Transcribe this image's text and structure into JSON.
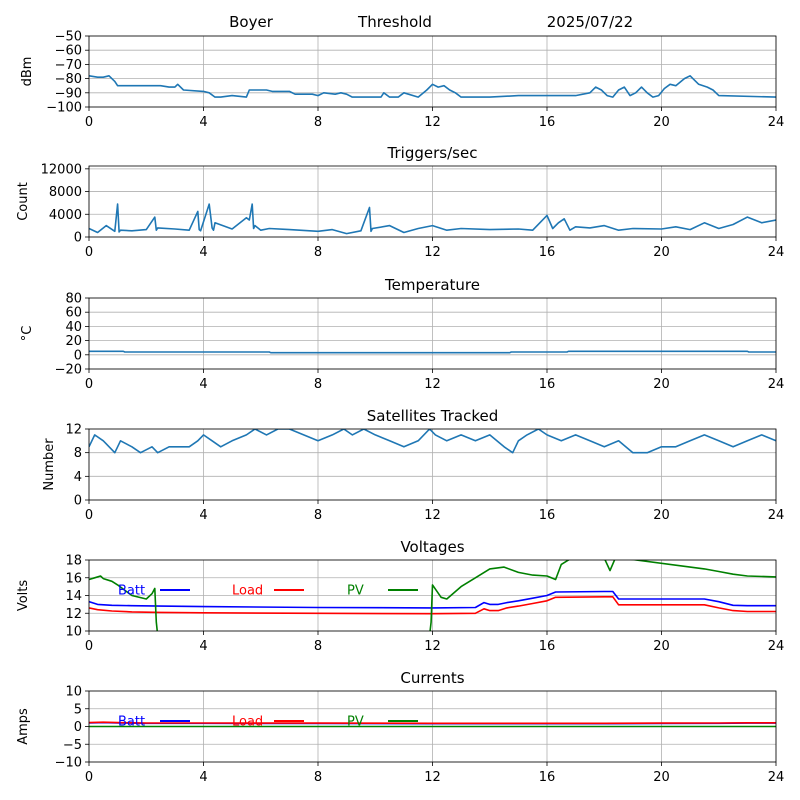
{
  "header": {
    "station": "Boyer",
    "mode": "Threshold",
    "date": "2025/07/22"
  },
  "colors": {
    "main": "#1f77b4",
    "batt": "#0000ff",
    "load": "#ff0000",
    "pv": "#008000",
    "grid": "#b0b0b0"
  },
  "chart_data": [
    {
      "type": "line",
      "title": "",
      "xlabel": "",
      "ylabel": "dBm",
      "xlim": [
        0,
        24
      ],
      "ylim": [
        -100,
        -50
      ],
      "xticks": [
        "0",
        "4",
        "8",
        "12",
        "16",
        "20",
        "24"
      ],
      "yticks": [
        "−100",
        "−90",
        "−80",
        "−70",
        "−60",
        "−50"
      ],
      "grid": true,
      "series": [
        {
          "name": "",
          "color": "main",
          "x": [
            0,
            0.3,
            0.5,
            0.7,
            0.9,
            1.0,
            2.5,
            2.8,
            3.0,
            3.1,
            3.3,
            4.0,
            4.2,
            4.4,
            4.6,
            5.0,
            5.5,
            5.6,
            5.8,
            6.2,
            6.4,
            7.0,
            7.2,
            7.8,
            8.0,
            8.2,
            8.6,
            8.8,
            9.0,
            9.2,
            10.2,
            10.3,
            10.5,
            10.8,
            11.0,
            11.5,
            11.8,
            12.0,
            12.2,
            12.4,
            12.6,
            12.8,
            13.0,
            14.0,
            15.0,
            16.0,
            17.0,
            17.5,
            17.7,
            17.9,
            18.1,
            18.3,
            18.5,
            18.7,
            18.9,
            19.1,
            19.3,
            19.5,
            19.7,
            19.9,
            20.1,
            20.3,
            20.5,
            20.8,
            21.0,
            21.3,
            21.6,
            21.8,
            22.0,
            24.0
          ],
          "y": [
            -78,
            -79,
            -79,
            -78,
            -82,
            -85,
            -85,
            -86,
            -86,
            -84,
            -88,
            -89,
            -90,
            -93,
            -93,
            -92,
            -93,
            -88,
            -88,
            -88,
            -89,
            -89,
            -91,
            -91,
            -92,
            -90,
            -91,
            -90,
            -91,
            -93,
            -93,
            -90,
            -93,
            -93,
            -90,
            -93,
            -88,
            -84,
            -86,
            -85,
            -88,
            -90,
            -93,
            -93,
            -92,
            -92,
            -92,
            -90,
            -86,
            -88,
            -92,
            -93,
            -88,
            -86,
            -92,
            -90,
            -86,
            -90,
            -93,
            -92,
            -87,
            -84,
            -85,
            -80,
            -78,
            -84,
            -86,
            -88,
            -92,
            -93
          ]
        }
      ]
    },
    {
      "type": "line",
      "title": "Triggers/sec",
      "xlabel": "",
      "ylabel": "Count",
      "xlim": [
        0,
        24
      ],
      "ylim": [
        0,
        12500
      ],
      "xticks": [
        "0",
        "4",
        "8",
        "12",
        "16",
        "20",
        "24"
      ],
      "yticks": [
        "0",
        "4000",
        "8000",
        "12000"
      ],
      "grid": true,
      "series": [
        {
          "name": "",
          "color": "main",
          "x": [
            0,
            0.3,
            0.6,
            0.9,
            1.0,
            1.05,
            1.1,
            1.5,
            2.0,
            2.3,
            2.35,
            2.4,
            3.0,
            3.5,
            3.8,
            3.85,
            3.9,
            4.2,
            4.3,
            4.35,
            4.4,
            5.0,
            5.5,
            5.6,
            5.7,
            5.75,
            5.8,
            6.0,
            6.3,
            7.0,
            8.0,
            8.5,
            9.0,
            9.5,
            9.8,
            9.85,
            9.9,
            10.5,
            11.0,
            11.5,
            12.0,
            12.5,
            13.0,
            14.0,
            15.0,
            15.5,
            16.0,
            16.2,
            16.4,
            16.6,
            16.8,
            17.0,
            17.5,
            18.0,
            18.5,
            19.0,
            20.0,
            20.5,
            21.0,
            21.5,
            22.0,
            22.5,
            23.0,
            23.5,
            24.0
          ],
          "y": [
            1500,
            800,
            2000,
            1000,
            5800,
            900,
            1200,
            1100,
            1300,
            3500,
            1200,
            1600,
            1400,
            1200,
            4500,
            1300,
            1100,
            5800,
            1600,
            1200,
            2500,
            1400,
            3400,
            3000,
            5800,
            1500,
            2000,
            1200,
            1500,
            1300,
            1000,
            1300,
            600,
            1100,
            5200,
            1000,
            1500,
            2000,
            800,
            1500,
            2000,
            1200,
            1500,
            1300,
            1400,
            1200,
            3800,
            1500,
            2500,
            3200,
            1200,
            1800,
            1600,
            2000,
            1200,
            1500,
            1400,
            1800,
            1300,
            2500,
            1500,
            2200,
            3500,
            2500,
            3000
          ]
        }
      ]
    },
    {
      "type": "line",
      "title": "Temperature",
      "xlabel": "",
      "ylabel": "°C",
      "xlim": [
        0,
        24
      ],
      "ylim": [
        -20,
        80
      ],
      "xticks": [
        "0",
        "4",
        "8",
        "12",
        "16",
        "20",
        "24"
      ],
      "yticks": [
        "−20",
        "0",
        "20",
        "40",
        "60",
        "80"
      ],
      "grid": true,
      "series": [
        {
          "name": "",
          "color": "main",
          "x": [
            0,
            1.2,
            1.25,
            6.3,
            6.35,
            14.7,
            14.75,
            16.7,
            16.75,
            23.0,
            23.05,
            24.0
          ],
          "y": [
            5,
            5,
            4,
            4,
            3,
            3,
            4,
            4,
            5,
            5,
            4,
            4
          ]
        }
      ]
    },
    {
      "type": "line",
      "title": "Satellites Tracked",
      "xlabel": "",
      "ylabel": "Number",
      "xlim": [
        0,
        24
      ],
      "ylim": [
        0,
        12
      ],
      "xticks": [
        "0",
        "4",
        "8",
        "12",
        "16",
        "20",
        "24"
      ],
      "yticks": [
        "0",
        "4",
        "8",
        "12"
      ],
      "grid": true,
      "series": [
        {
          "name": "",
          "color": "main",
          "x": [
            0,
            0.2,
            0.5,
            0.9,
            1.1,
            1.5,
            1.8,
            2.2,
            2.4,
            2.8,
            3.5,
            3.8,
            4.0,
            4.3,
            4.6,
            5.0,
            5.5,
            5.8,
            6.2,
            6.6,
            7.0,
            7.5,
            8.0,
            8.5,
            8.9,
            9.2,
            9.6,
            10.0,
            10.5,
            11.0,
            11.5,
            11.9,
            12.1,
            12.5,
            13.0,
            13.5,
            14.0,
            14.5,
            14.8,
            15.0,
            15.3,
            15.7,
            16.0,
            16.5,
            17.0,
            17.5,
            18.0,
            18.5,
            19.0,
            19.5,
            20.0,
            20.5,
            21.0,
            21.5,
            22.0,
            22.5,
            23.0,
            23.5,
            24.0
          ],
          "y": [
            9,
            11,
            10,
            8,
            10,
            9,
            8,
            9,
            8,
            9,
            9,
            10,
            11,
            10,
            9,
            10,
            11,
            12,
            11,
            12,
            12,
            11,
            10,
            11,
            12,
            11,
            12,
            11,
            10,
            9,
            10,
            12,
            11,
            10,
            11,
            10,
            11,
            9,
            8,
            10,
            11,
            12,
            11,
            10,
            11,
            10,
            9,
            10,
            8,
            8,
            9,
            9,
            10,
            11,
            10,
            9,
            10,
            11,
            10
          ]
        }
      ]
    },
    {
      "type": "line",
      "title": "Voltages",
      "xlabel": "",
      "ylabel": "Volts",
      "xlim": [
        0,
        24
      ],
      "ylim": [
        10,
        18
      ],
      "xticks": [
        "0",
        "4",
        "8",
        "12",
        "16",
        "20",
        "24"
      ],
      "yticks": [
        "10",
        "12",
        "14",
        "16",
        "18"
      ],
      "grid": true,
      "legend": "inline-top",
      "series": [
        {
          "name": "Batt",
          "color": "batt",
          "x": [
            0,
            0.3,
            0.8,
            1.5,
            2.5,
            4,
            8,
            12,
            13.5,
            13.8,
            14,
            14.3,
            14.6,
            15,
            15.5,
            16,
            16.3,
            18,
            18.3,
            18.5,
            19,
            21.5,
            22,
            22.5,
            23,
            24
          ],
          "y": [
            13.3,
            13,
            12.9,
            12.85,
            12.8,
            12.75,
            12.65,
            12.6,
            12.65,
            13.2,
            13,
            13,
            13.2,
            13.4,
            13.7,
            14,
            14.4,
            14.45,
            14.45,
            13.6,
            13.6,
            13.6,
            13.3,
            12.9,
            12.85,
            12.85
          ]
        },
        {
          "name": "Load",
          "color": "load",
          "x": [
            0,
            0.3,
            0.8,
            1.5,
            2.5,
            4,
            8,
            12,
            13.5,
            13.8,
            14,
            14.3,
            14.6,
            15,
            15.5,
            16,
            16.3,
            18,
            18.3,
            18.5,
            19,
            21.5,
            22,
            22.5,
            23,
            24
          ],
          "y": [
            12.6,
            12.4,
            12.25,
            12.15,
            12.1,
            12.05,
            12,
            11.95,
            12,
            12.5,
            12.3,
            12.3,
            12.6,
            12.8,
            13.1,
            13.4,
            13.8,
            13.85,
            13.85,
            12.95,
            12.95,
            12.95,
            12.6,
            12.3,
            12.2,
            12.2
          ]
        },
        {
          "name": "PV",
          "color": "pv",
          "x": [
            0,
            0.2,
            0.4,
            0.5,
            0.8,
            1.0,
            1.5,
            2.0,
            2.2,
            2.3,
            2.35,
            2.4,
            11.9,
            11.95,
            12.0,
            12.3,
            12.5,
            13,
            13.5,
            14,
            14.5,
            15,
            15.5,
            16,
            16.3,
            16.5,
            17,
            17.5,
            18,
            18.2,
            18.4,
            21,
            21.5,
            22,
            22.5,
            23,
            24
          ],
          "y": [
            15.8,
            16,
            16.2,
            15.9,
            15.6,
            15.2,
            14,
            13.6,
            14.2,
            14.8,
            11,
            9.5,
            9.5,
            11,
            15.2,
            13.8,
            13.6,
            15,
            16,
            17,
            17.2,
            16.6,
            16.3,
            16.2,
            15.8,
            17.5,
            18.5,
            18.7,
            18.2,
            16.8,
            18.3,
            17.2,
            17,
            16.7,
            16.4,
            16.2,
            16.1
          ]
        }
      ]
    },
    {
      "type": "line",
      "title": "Currents",
      "xlabel": "",
      "ylabel": "Amps",
      "xlim": [
        0,
        24
      ],
      "ylim": [
        -10,
        10
      ],
      "xticks": [
        "0",
        "4",
        "8",
        "12",
        "16",
        "20",
        "24"
      ],
      "yticks": [
        "−10",
        "−5",
        "0",
        "5",
        "10"
      ],
      "grid": true,
      "legend": "inline-top",
      "series": [
        {
          "name": "Batt",
          "color": "batt",
          "x": [
            0,
            0.5,
            1,
            2,
            4,
            8,
            12,
            16,
            18,
            20,
            22,
            23,
            24
          ],
          "y": [
            1.0,
            1.1,
            1.0,
            0.9,
            0.9,
            0.85,
            0.8,
            0.8,
            0.8,
            0.85,
            0.9,
            0.95,
            0.95
          ]
        },
        {
          "name": "Load",
          "color": "load",
          "x": [
            0,
            0.5,
            1,
            2,
            4,
            8,
            12,
            16,
            18,
            20,
            22,
            23,
            24
          ],
          "y": [
            1.1,
            1.2,
            1.1,
            1.0,
            1.0,
            0.95,
            0.9,
            0.9,
            0.9,
            0.95,
            1.0,
            1.05,
            1.05
          ]
        },
        {
          "name": "PV",
          "color": "pv",
          "x": [
            0,
            24
          ],
          "y": [
            0,
            0
          ]
        }
      ]
    }
  ]
}
